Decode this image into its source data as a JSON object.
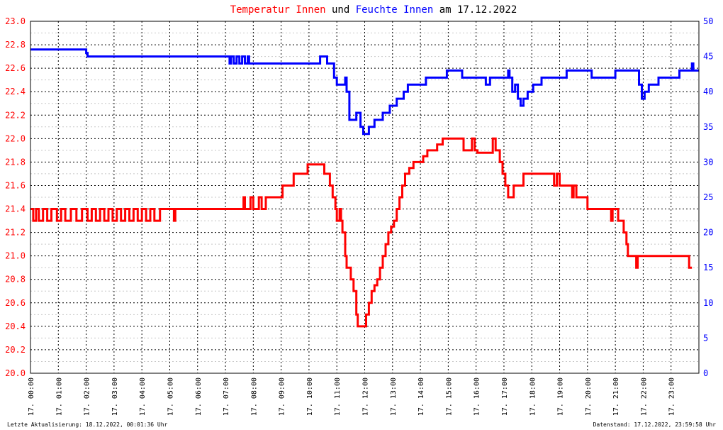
{
  "chart_data": {
    "type": "line",
    "title": {
      "part1": "Temperatur Innen",
      "part2": " und ",
      "part3": "Feuchte Innen",
      "part4": " am 17.12.2022"
    },
    "footer_left": "Letzte Aktualisierung: 18.12.2022, 00:01:36 Uhr",
    "footer_right": "Datenstand: 17.12.2022, 23:59:58 Uhr",
    "x_tick_labels": [
      "17. 00:00",
      "17. 01:00",
      "17. 02:00",
      "17. 03:00",
      "17. 04:00",
      "17. 05:00",
      "17. 06:00",
      "17. 07:00",
      "17. 08:00",
      "17. 09:00",
      "17. 10:00",
      "17. 11:00",
      "17. 12:00",
      "17. 13:00",
      "17. 14:00",
      "17. 15:00",
      "17. 16:00",
      "17. 17:00",
      "17. 18:00",
      "17. 19:00",
      "17. 20:00",
      "17. 21:00",
      "17. 22:00",
      "17. 23:00"
    ],
    "x_range_hours": [
      0,
      24
    ],
    "y_left": {
      "ticks": [
        "20.0",
        "20.2",
        "20.4",
        "20.6",
        "20.8",
        "21.0",
        "21.2",
        "21.4",
        "21.6",
        "21.8",
        "22.0",
        "22.2",
        "22.4",
        "22.6",
        "22.8",
        "23.0"
      ],
      "range": [
        20.0,
        23.0
      ],
      "color": "#ff0000"
    },
    "y_right": {
      "ticks": [
        "0",
        "5",
        "10",
        "15",
        "20",
        "25",
        "30",
        "35",
        "40",
        "45",
        "50"
      ],
      "range": [
        0,
        50
      ],
      "color": "#0000ff"
    },
    "grid": true,
    "series": [
      {
        "name": "Temperatur Innen",
        "axis": "left",
        "color": "#ff0000",
        "points": [
          [
            0,
            21.4
          ],
          [
            0.1,
            21.3
          ],
          [
            0.2,
            21.4
          ],
          [
            0.3,
            21.3
          ],
          [
            0.45,
            21.4
          ],
          [
            0.6,
            21.3
          ],
          [
            0.75,
            21.4
          ],
          [
            0.95,
            21.3
          ],
          [
            1.1,
            21.4
          ],
          [
            1.25,
            21.3
          ],
          [
            1.45,
            21.4
          ],
          [
            1.65,
            21.3
          ],
          [
            1.85,
            21.4
          ],
          [
            2.05,
            21.3
          ],
          [
            2.2,
            21.4
          ],
          [
            2.35,
            21.3
          ],
          [
            2.5,
            21.4
          ],
          [
            2.65,
            21.3
          ],
          [
            2.8,
            21.4
          ],
          [
            2.95,
            21.3
          ],
          [
            3.1,
            21.4
          ],
          [
            3.25,
            21.3
          ],
          [
            3.4,
            21.4
          ],
          [
            3.55,
            21.3
          ],
          [
            3.7,
            21.4
          ],
          [
            3.85,
            21.3
          ],
          [
            4.0,
            21.4
          ],
          [
            4.15,
            21.3
          ],
          [
            4.3,
            21.4
          ],
          [
            4.45,
            21.3
          ],
          [
            4.65,
            21.4
          ],
          [
            5.1,
            21.4
          ],
          [
            5.15,
            21.3
          ],
          [
            5.2,
            21.4
          ],
          [
            7.6,
            21.4
          ],
          [
            7.65,
            21.5
          ],
          [
            7.7,
            21.4
          ],
          [
            7.9,
            21.5
          ],
          [
            8.0,
            21.4
          ],
          [
            8.2,
            21.5
          ],
          [
            8.3,
            21.4
          ],
          [
            8.45,
            21.5
          ],
          [
            9.0,
            21.5
          ],
          [
            9.05,
            21.6
          ],
          [
            9.4,
            21.6
          ],
          [
            9.45,
            21.7
          ],
          [
            9.9,
            21.7
          ],
          [
            9.95,
            21.78
          ],
          [
            10.45,
            21.78
          ],
          [
            10.55,
            21.7
          ],
          [
            10.75,
            21.6
          ],
          [
            10.85,
            21.5
          ],
          [
            10.95,
            21.4
          ],
          [
            11.0,
            21.3
          ],
          [
            11.1,
            21.4
          ],
          [
            11.15,
            21.3
          ],
          [
            11.2,
            21.2
          ],
          [
            11.3,
            21.0
          ],
          [
            11.35,
            20.9
          ],
          [
            11.5,
            20.8
          ],
          [
            11.6,
            20.7
          ],
          [
            11.7,
            20.5
          ],
          [
            11.75,
            20.4
          ],
          [
            11.95,
            20.4
          ],
          [
            12.05,
            20.5
          ],
          [
            12.15,
            20.6
          ],
          [
            12.25,
            20.7
          ],
          [
            12.35,
            20.75
          ],
          [
            12.45,
            20.8
          ],
          [
            12.55,
            20.9
          ],
          [
            12.65,
            21.0
          ],
          [
            12.75,
            21.1
          ],
          [
            12.85,
            21.2
          ],
          [
            12.95,
            21.25
          ],
          [
            13.05,
            21.3
          ],
          [
            13.15,
            21.4
          ],
          [
            13.25,
            21.5
          ],
          [
            13.35,
            21.6
          ],
          [
            13.45,
            21.7
          ],
          [
            13.6,
            21.75
          ],
          [
            13.75,
            21.8
          ],
          [
            14.05,
            21.8
          ],
          [
            14.1,
            21.85
          ],
          [
            14.25,
            21.9
          ],
          [
            14.55,
            21.9
          ],
          [
            14.6,
            21.95
          ],
          [
            14.8,
            22.0
          ],
          [
            15.5,
            22.0
          ],
          [
            15.55,
            21.9
          ],
          [
            15.8,
            21.9
          ],
          [
            15.85,
            22.0
          ],
          [
            15.95,
            21.9
          ],
          [
            16.0,
            21.9
          ],
          [
            16.05,
            21.88
          ],
          [
            16.55,
            21.88
          ],
          [
            16.6,
            22.0
          ],
          [
            16.7,
            21.9
          ],
          [
            16.85,
            21.8
          ],
          [
            16.95,
            21.7
          ],
          [
            17.05,
            21.6
          ],
          [
            17.15,
            21.5
          ],
          [
            17.3,
            21.5
          ],
          [
            17.35,
            21.6
          ],
          [
            17.65,
            21.6
          ],
          [
            17.7,
            21.7
          ],
          [
            18.75,
            21.7
          ],
          [
            18.8,
            21.6
          ],
          [
            18.9,
            21.7
          ],
          [
            19.0,
            21.6
          ],
          [
            19.4,
            21.6
          ],
          [
            19.45,
            21.5
          ],
          [
            19.5,
            21.6
          ],
          [
            19.6,
            21.5
          ],
          [
            19.95,
            21.5
          ],
          [
            20.0,
            21.4
          ],
          [
            20.8,
            21.4
          ],
          [
            20.85,
            21.3
          ],
          [
            20.9,
            21.4
          ],
          [
            21.05,
            21.4
          ],
          [
            21.1,
            21.3
          ],
          [
            21.25,
            21.3
          ],
          [
            21.3,
            21.2
          ],
          [
            21.4,
            21.1
          ],
          [
            21.45,
            21.0
          ],
          [
            21.7,
            21.0
          ],
          [
            21.75,
            20.9
          ],
          [
            21.8,
            21.0
          ],
          [
            23.6,
            21.0
          ],
          [
            23.65,
            20.9
          ],
          [
            23.75,
            20.9
          ]
        ]
      },
      {
        "name": "Feuchte Innen",
        "axis": "right",
        "color": "#0000ff",
        "points": [
          [
            0,
            46
          ],
          [
            1.95,
            46
          ],
          [
            2.0,
            45.5
          ],
          [
            2.05,
            45
          ],
          [
            7.1,
            45
          ],
          [
            7.15,
            44
          ],
          [
            7.2,
            45
          ],
          [
            7.3,
            44
          ],
          [
            7.4,
            45
          ],
          [
            7.5,
            44
          ],
          [
            7.6,
            45
          ],
          [
            7.7,
            44
          ],
          [
            7.75,
            44
          ],
          [
            7.8,
            45
          ],
          [
            7.85,
            44
          ],
          [
            10.3,
            44
          ],
          [
            10.4,
            45
          ],
          [
            10.6,
            45
          ],
          [
            10.65,
            44
          ],
          [
            10.8,
            44
          ],
          [
            10.9,
            42
          ],
          [
            11.0,
            41
          ],
          [
            11.25,
            41
          ],
          [
            11.3,
            42
          ],
          [
            11.35,
            40
          ],
          [
            11.45,
            36
          ],
          [
            11.6,
            36
          ],
          [
            11.7,
            37
          ],
          [
            11.8,
            37
          ],
          [
            11.85,
            35
          ],
          [
            11.95,
            34
          ],
          [
            12.1,
            34
          ],
          [
            12.15,
            35
          ],
          [
            12.3,
            35
          ],
          [
            12.35,
            36
          ],
          [
            12.6,
            36
          ],
          [
            12.65,
            37
          ],
          [
            12.85,
            37
          ],
          [
            12.9,
            38
          ],
          [
            13.1,
            38
          ],
          [
            13.15,
            39
          ],
          [
            13.35,
            39
          ],
          [
            13.4,
            40
          ],
          [
            13.5,
            40
          ],
          [
            13.55,
            41
          ],
          [
            14.15,
            41
          ],
          [
            14.2,
            42
          ],
          [
            14.9,
            42
          ],
          [
            14.95,
            43
          ],
          [
            15.45,
            43
          ],
          [
            15.5,
            42
          ],
          [
            16.3,
            42
          ],
          [
            16.35,
            41
          ],
          [
            16.45,
            41
          ],
          [
            16.5,
            42
          ],
          [
            17.1,
            42
          ],
          [
            17.15,
            43
          ],
          [
            17.2,
            42
          ],
          [
            17.3,
            40
          ],
          [
            17.4,
            41
          ],
          [
            17.5,
            39
          ],
          [
            17.6,
            38
          ],
          [
            17.7,
            39
          ],
          [
            17.8,
            39
          ],
          [
            17.85,
            40
          ],
          [
            18.0,
            40
          ],
          [
            18.05,
            41
          ],
          [
            18.3,
            41
          ],
          [
            18.35,
            42
          ],
          [
            19.2,
            42
          ],
          [
            19.25,
            43
          ],
          [
            20.1,
            43
          ],
          [
            20.15,
            42
          ],
          [
            20.95,
            42
          ],
          [
            21.0,
            43
          ],
          [
            21.8,
            43
          ],
          [
            21.85,
            41
          ],
          [
            21.95,
            39
          ],
          [
            22.05,
            40
          ],
          [
            22.15,
            40
          ],
          [
            22.2,
            41
          ],
          [
            22.5,
            41
          ],
          [
            22.55,
            42
          ],
          [
            23.25,
            42
          ],
          [
            23.3,
            43
          ],
          [
            23.7,
            43
          ],
          [
            23.75,
            44
          ],
          [
            23.8,
            43
          ],
          [
            24.0,
            43
          ]
        ]
      }
    ]
  }
}
